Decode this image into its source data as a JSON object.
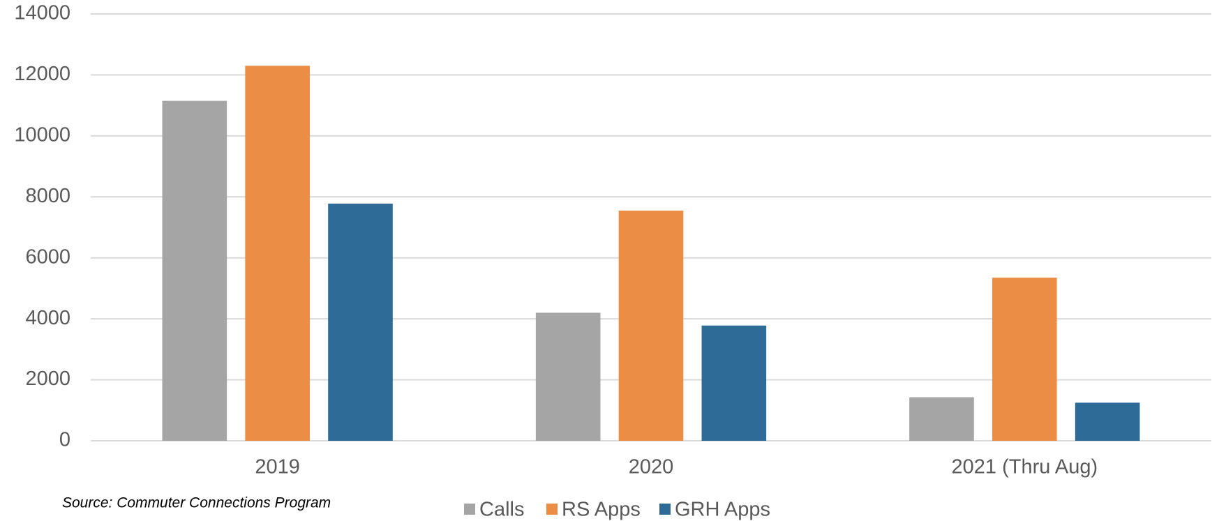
{
  "chart_data": {
    "type": "bar",
    "categories": [
      "2019",
      "2020",
      "2021 (Thru Aug)"
    ],
    "series": [
      {
        "name": "Calls",
        "color": "#a5a5a5",
        "values": [
          11150,
          4200,
          1430
        ]
      },
      {
        "name": "RS Apps",
        "color": "#eb8d44",
        "values": [
          12300,
          7550,
          5350
        ]
      },
      {
        "name": "GRH Apps",
        "color": "#2e6b97",
        "values": [
          7780,
          3780,
          1250
        ]
      }
    ],
    "ylim": [
      0,
      14000
    ],
    "yticks": [
      0,
      2000,
      4000,
      6000,
      8000,
      10000,
      12000,
      14000
    ],
    "grid": true,
    "legend": "bottom",
    "annotation": "Source: Commuter Connections Program"
  }
}
